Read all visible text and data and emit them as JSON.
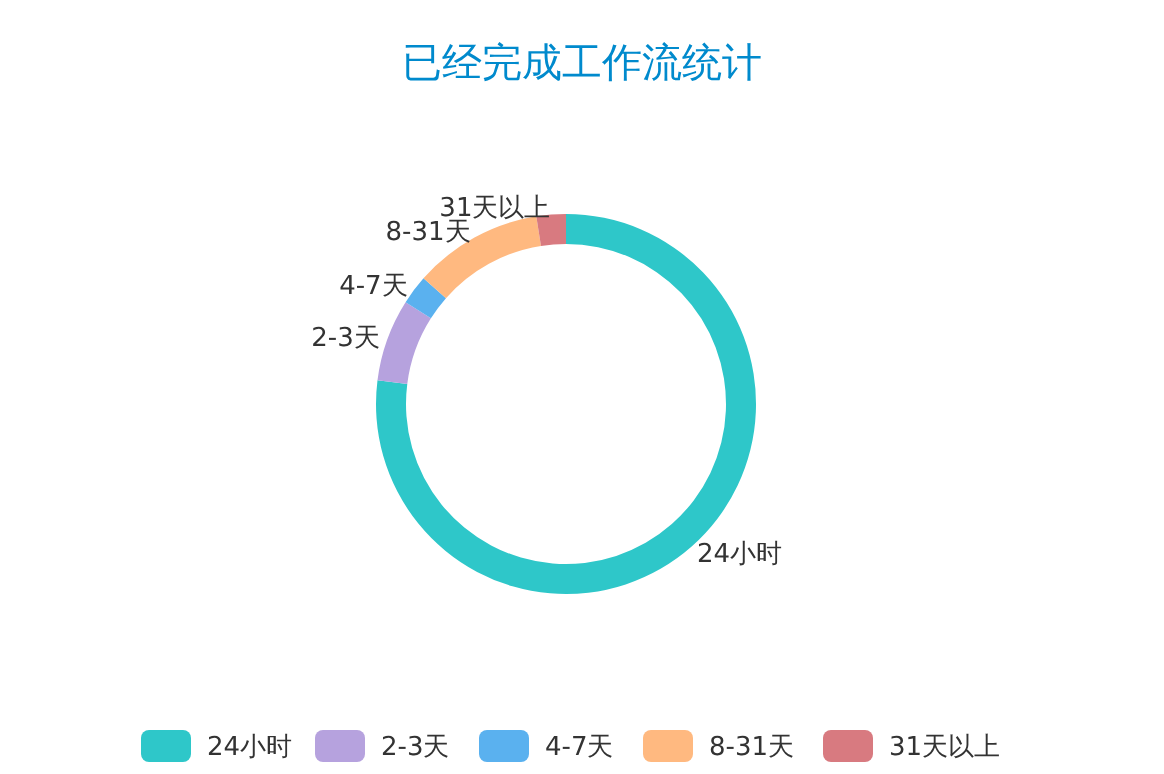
{
  "chart_data": {
    "type": "donut",
    "title": "已经完成工作流统计",
    "categories": [
      "24小时",
      "2-3天",
      "4-7天",
      "8-31天",
      "31天以上"
    ],
    "values": [
      77,
      7,
      2.5,
      11,
      2.5
    ],
    "colors": [
      "#2ec7c9",
      "#b6a2de",
      "#5ab1ef",
      "#ffb980",
      "#d87a80"
    ],
    "legend": "bottom"
  }
}
